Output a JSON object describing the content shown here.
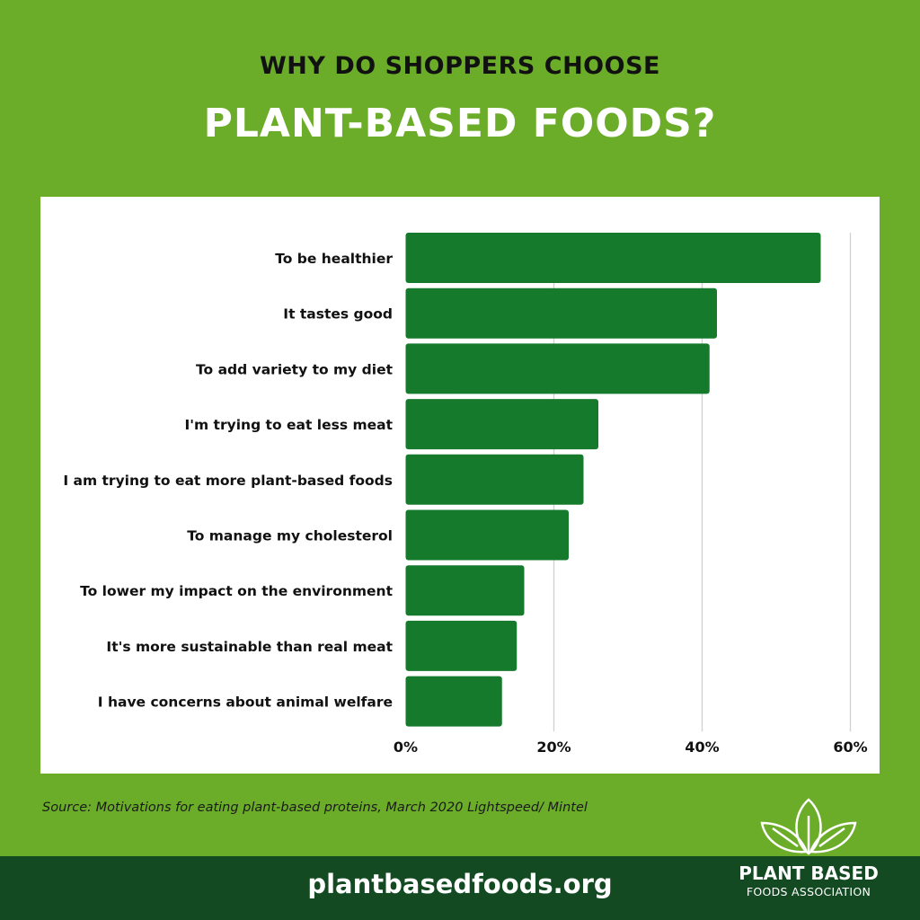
{
  "header": {
    "supertitle": "WHY DO SHOPPERS CHOOSE",
    "title": "PLANT-BASED FOODS?"
  },
  "colors": {
    "background": "#6bad28",
    "bar": "#157a2c",
    "footer": "#134a22",
    "grid": "#d0d0d0"
  },
  "chart_data": {
    "type": "bar",
    "orientation": "horizontal",
    "categories": [
      "To be healthier",
      "It tastes good",
      "To add variety to my diet",
      "I'm trying to eat less meat",
      "I am trying to eat more plant-based foods",
      "To manage my cholesterol",
      "To lower my impact on the environment",
      "It's more sustainable than real meat",
      "I have concerns about animal welfare"
    ],
    "values": [
      56,
      42,
      41,
      26,
      24,
      22,
      16,
      15,
      13
    ],
    "xlim": [
      0,
      60
    ],
    "xticks": [
      0,
      20,
      40,
      60
    ],
    "xtick_labels": [
      "0%",
      "20%",
      "40%",
      "60%"
    ],
    "grid": true
  },
  "source": "Source: Motivations for eating plant-based proteins, March 2020 Lightspeed/ Mintel",
  "footer": {
    "url": "plantbasedfoods.org"
  },
  "logo": {
    "line1": "PLANT BASED",
    "line2": "FOODS ASSOCIATION",
    "icon": "three-leaves-icon"
  }
}
